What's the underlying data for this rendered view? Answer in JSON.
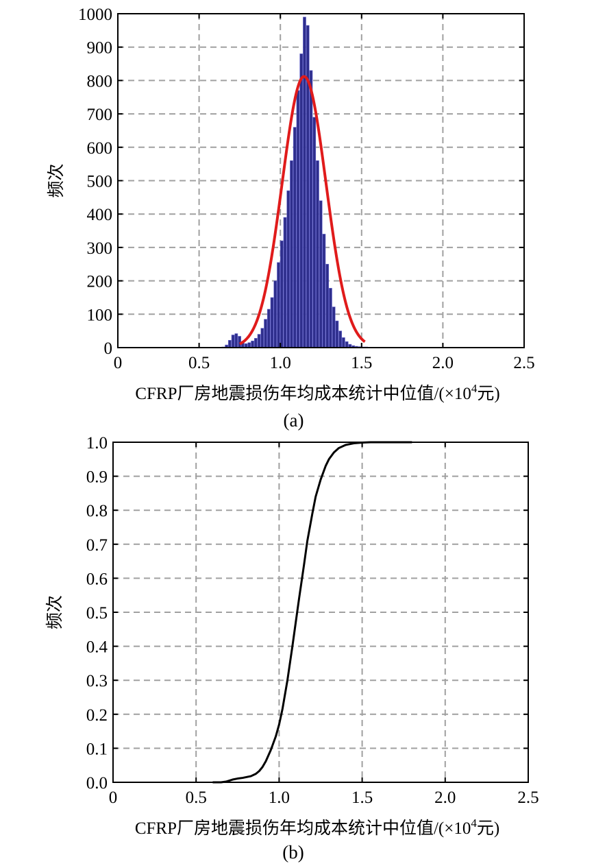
{
  "chart_data": [
    {
      "type": "bar",
      "panel": "a",
      "caption": "(a)",
      "title": "",
      "xlabel_main": "CFRP厂房地震损伤年均成本统计中位值/(×10",
      "xlabel_sup": "4",
      "xlabel_tail": "元)",
      "ylabel": "频次",
      "xlim": [
        0,
        2.5
      ],
      "ylim": [
        0,
        1000
      ],
      "xticks": [
        0,
        0.5,
        1.0,
        1.5,
        2.0,
        2.5
      ],
      "xtick_labels": [
        "0",
        "0.5",
        "1.0",
        "1.5",
        "2.0",
        "2.5"
      ],
      "yticks": [
        0,
        100,
        200,
        300,
        400,
        500,
        600,
        700,
        800,
        900,
        1000
      ],
      "ytick_labels": [
        "0",
        "100",
        "200",
        "300",
        "400",
        "500",
        "600",
        "700",
        "800",
        "900",
        "1000"
      ],
      "grid": true,
      "bar_color": "#2e2e8c",
      "fit_color": "#e01b1b",
      "bins": [
        {
          "x": 0.65,
          "y": 2
        },
        {
          "x": 0.67,
          "y": 8
        },
        {
          "x": 0.69,
          "y": 22
        },
        {
          "x": 0.71,
          "y": 38
        },
        {
          "x": 0.73,
          "y": 42
        },
        {
          "x": 0.75,
          "y": 34
        },
        {
          "x": 0.77,
          "y": 18
        },
        {
          "x": 0.79,
          "y": 12
        },
        {
          "x": 0.81,
          "y": 15
        },
        {
          "x": 0.83,
          "y": 20
        },
        {
          "x": 0.85,
          "y": 28
        },
        {
          "x": 0.87,
          "y": 40
        },
        {
          "x": 0.89,
          "y": 58
        },
        {
          "x": 0.91,
          "y": 85
        },
        {
          "x": 0.93,
          "y": 115
        },
        {
          "x": 0.95,
          "y": 150
        },
        {
          "x": 0.97,
          "y": 200
        },
        {
          "x": 0.99,
          "y": 255
        },
        {
          "x": 1.01,
          "y": 320
        },
        {
          "x": 1.03,
          "y": 390
        },
        {
          "x": 1.05,
          "y": 470
        },
        {
          "x": 1.07,
          "y": 560
        },
        {
          "x": 1.09,
          "y": 660
        },
        {
          "x": 1.11,
          "y": 770
        },
        {
          "x": 1.13,
          "y": 880
        },
        {
          "x": 1.15,
          "y": 990
        },
        {
          "x": 1.17,
          "y": 965
        },
        {
          "x": 1.19,
          "y": 830
        },
        {
          "x": 1.21,
          "y": 690
        },
        {
          "x": 1.23,
          "y": 560
        },
        {
          "x": 1.25,
          "y": 440
        },
        {
          "x": 1.27,
          "y": 340
        },
        {
          "x": 1.29,
          "y": 250
        },
        {
          "x": 1.31,
          "y": 178
        },
        {
          "x": 1.33,
          "y": 122
        },
        {
          "x": 1.35,
          "y": 80
        },
        {
          "x": 1.37,
          "y": 50
        },
        {
          "x": 1.39,
          "y": 30
        },
        {
          "x": 1.41,
          "y": 18
        },
        {
          "x": 1.43,
          "y": 10
        },
        {
          "x": 1.45,
          "y": 6
        },
        {
          "x": 1.47,
          "y": 4
        },
        {
          "x": 1.49,
          "y": 3
        },
        {
          "x": 1.51,
          "y": 2
        },
        {
          "x": 1.53,
          "y": 2
        },
        {
          "x": 1.55,
          "y": 1
        },
        {
          "x": 1.57,
          "y": 1
        },
        {
          "x": 1.59,
          "y": 1
        }
      ],
      "fit": {
        "type": "normal",
        "mean": 1.146,
        "sd": 0.135,
        "peak": 812,
        "x_range": [
          0.75,
          1.52
        ]
      }
    },
    {
      "type": "line",
      "panel": "b",
      "caption": "(b)",
      "title": "",
      "xlabel_main": "CFRP厂房地震损伤年均成本统计中位值/(×10",
      "xlabel_sup": "4",
      "xlabel_tail": "元)",
      "ylabel": "频次",
      "xlim": [
        0,
        2.5
      ],
      "ylim": [
        0,
        1.0
      ],
      "xticks": [
        0,
        0.5,
        1.0,
        1.5,
        2.0,
        2.5
      ],
      "xtick_labels": [
        "0",
        "0.5",
        "1.0",
        "1.5",
        "2.0",
        "2.5"
      ],
      "yticks": [
        0,
        0.1,
        0.2,
        0.3,
        0.4,
        0.5,
        0.6,
        0.7,
        0.8,
        0.9,
        1.0
      ],
      "ytick_labels": [
        "0.0",
        "0.1",
        "0.2",
        "0.3",
        "0.4",
        "0.5",
        "0.6",
        "0.7",
        "0.8",
        "0.9",
        "1.0"
      ],
      "grid": true,
      "line_color": "#000000",
      "series": [
        {
          "x": [
            0.6,
            0.65,
            0.68,
            0.7,
            0.72,
            0.75,
            0.78,
            0.8,
            0.83,
            0.86,
            0.88,
            0.9,
            0.92,
            0.95,
            0.98,
            1.0,
            1.02,
            1.05,
            1.08,
            1.1,
            1.12,
            1.15,
            1.17,
            1.2,
            1.22,
            1.25,
            1.28,
            1.3,
            1.33,
            1.36,
            1.4,
            1.45,
            1.5,
            1.55,
            1.6,
            1.8
          ],
          "y": [
            0.0,
            0.0,
            0.002,
            0.005,
            0.008,
            0.011,
            0.013,
            0.015,
            0.018,
            0.025,
            0.033,
            0.045,
            0.062,
            0.095,
            0.135,
            0.17,
            0.215,
            0.3,
            0.4,
            0.47,
            0.54,
            0.64,
            0.71,
            0.79,
            0.84,
            0.89,
            0.93,
            0.95,
            0.97,
            0.983,
            0.992,
            0.997,
            0.999,
            1.0,
            1.0,
            1.0
          ]
        }
      ]
    }
  ]
}
